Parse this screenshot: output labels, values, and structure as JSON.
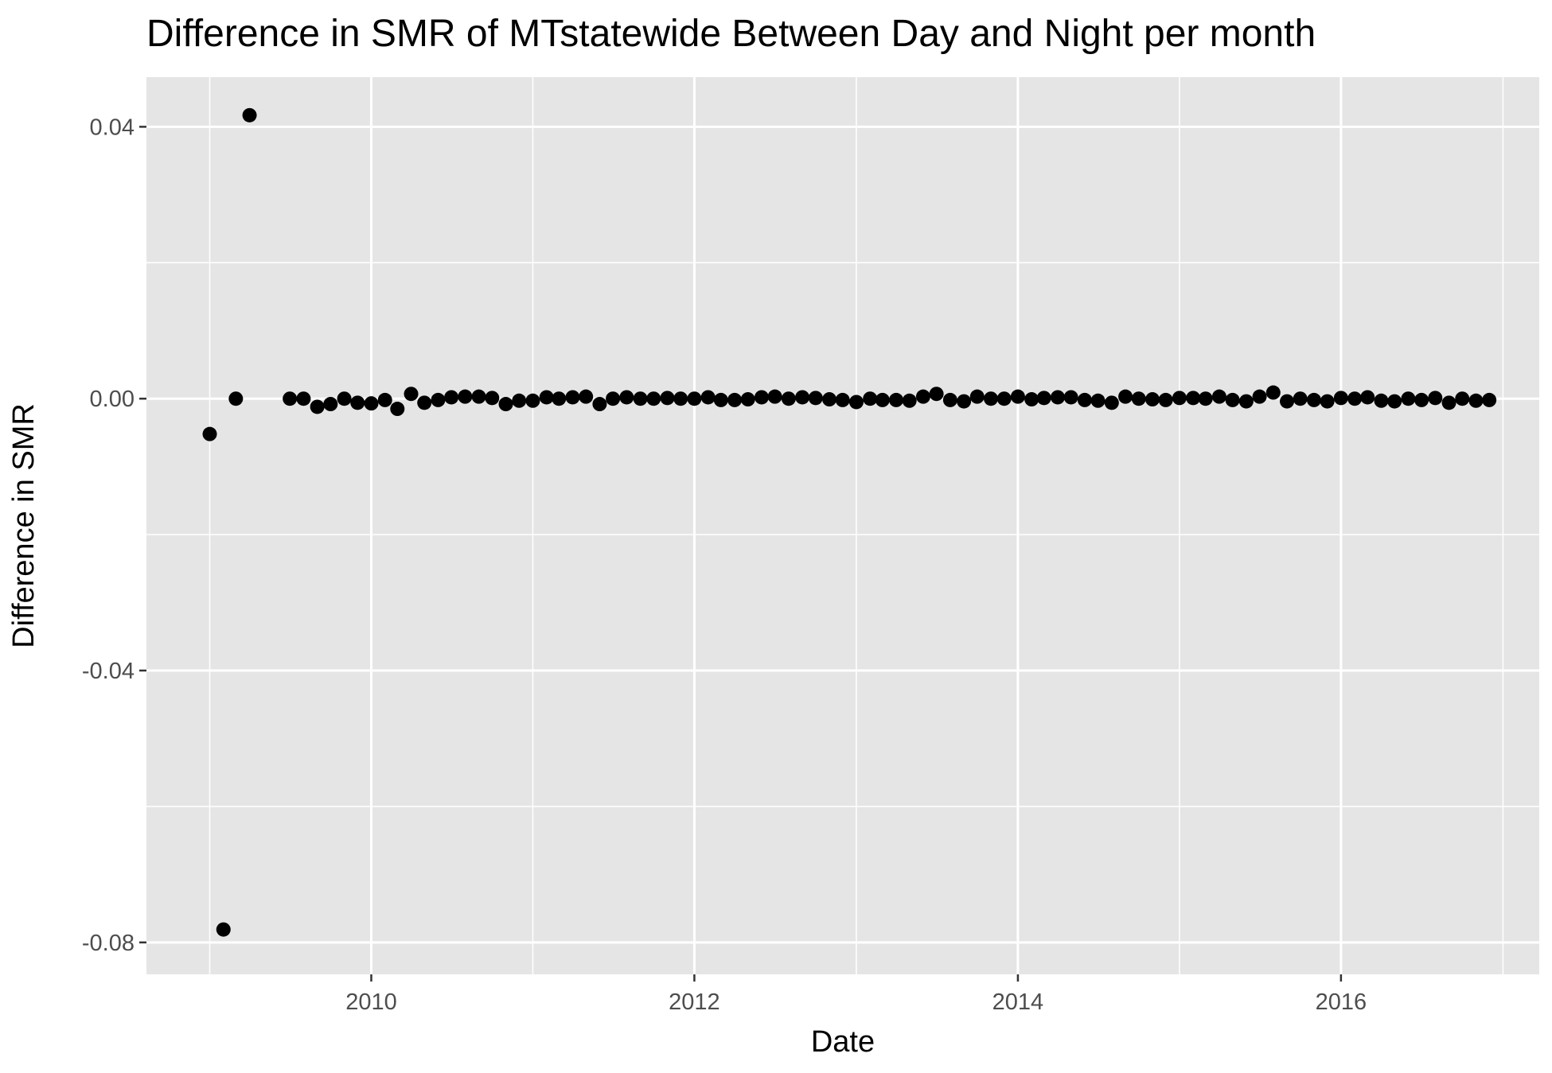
{
  "chart_data": {
    "type": "scatter",
    "title": "Difference in SMR of MTstatewide Between Day and Night per month",
    "xlabel": "Date",
    "ylabel": "Difference in SMR",
    "x_tick_labels": [
      "2010",
      "2012",
      "2014",
      "2016"
    ],
    "y_tick_labels": [
      "0.04",
      "0.00",
      "-0.04",
      "-0.08"
    ],
    "y_ticks": [
      0.04,
      0.0,
      -0.04,
      -0.08
    ],
    "x_ticks": [
      "2010-01-01",
      "2012-01-01",
      "2014-01-01",
      "2016-01-01"
    ],
    "xlim": [
      "2008-08-11",
      "2017-03-24"
    ],
    "ylim": [
      -0.0847,
      0.0473
    ],
    "grid": true,
    "legend": "none",
    "colors": {
      "panel_background": "#e5e5e5",
      "grid_line": "#ffffff",
      "point": "#000000",
      "tick_mark": "#333333",
      "tick_text": "#4d4d4d"
    },
    "series": [
      {
        "points": [
          {
            "x": "2009-01-01",
            "y": -0.0052
          },
          {
            "x": "2009-02-01",
            "y": -0.0781
          },
          {
            "x": "2009-03-01",
            "y": 0.0
          },
          {
            "x": "2009-04-01",
            "y": 0.0417
          },
          {
            "x": "2009-07-01",
            "y": 0.0
          },
          {
            "x": "2009-08-01",
            "y": 0.0
          },
          {
            "x": "2009-09-01",
            "y": -0.0012
          },
          {
            "x": "2009-10-01",
            "y": -0.0008
          },
          {
            "x": "2009-11-01",
            "y": 0.0
          },
          {
            "x": "2009-12-01",
            "y": -0.0006
          },
          {
            "x": "2010-01-01",
            "y": -0.0007
          },
          {
            "x": "2010-02-01",
            "y": -0.0002
          },
          {
            "x": "2010-03-01",
            "y": -0.0015
          },
          {
            "x": "2010-04-01",
            "y": 0.0007
          },
          {
            "x": "2010-05-01",
            "y": -0.0006
          },
          {
            "x": "2010-06-01",
            "y": -0.0002
          },
          {
            "x": "2010-07-01",
            "y": 0.0002
          },
          {
            "x": "2010-08-01",
            "y": 0.0003
          },
          {
            "x": "2010-09-01",
            "y": 0.0003
          },
          {
            "x": "2010-10-01",
            "y": 0.0001
          },
          {
            "x": "2010-11-01",
            "y": -0.0008
          },
          {
            "x": "2010-12-01",
            "y": -0.0003
          },
          {
            "x": "2011-01-01",
            "y": -0.0003
          },
          {
            "x": "2011-02-01",
            "y": 0.0002
          },
          {
            "x": "2011-03-01",
            "y": 0.0
          },
          {
            "x": "2011-04-01",
            "y": 0.0002
          },
          {
            "x": "2011-05-01",
            "y": 0.0003
          },
          {
            "x": "2011-06-01",
            "y": -0.0008
          },
          {
            "x": "2011-07-01",
            "y": 0.0
          },
          {
            "x": "2011-08-01",
            "y": 0.0002
          },
          {
            "x": "2011-09-01",
            "y": 0.0
          },
          {
            "x": "2011-10-01",
            "y": 0.0
          },
          {
            "x": "2011-11-01",
            "y": 0.0001
          },
          {
            "x": "2011-12-01",
            "y": 0.0
          },
          {
            "x": "2012-01-01",
            "y": 0.0
          },
          {
            "x": "2012-02-01",
            "y": 0.0002
          },
          {
            "x": "2012-03-01",
            "y": -0.0002
          },
          {
            "x": "2012-04-01",
            "y": -0.0002
          },
          {
            "x": "2012-05-01",
            "y": -0.0001
          },
          {
            "x": "2012-06-01",
            "y": 0.0002
          },
          {
            "x": "2012-07-01",
            "y": 0.0003
          },
          {
            "x": "2012-08-01",
            "y": 0.0
          },
          {
            "x": "2012-09-01",
            "y": 0.0002
          },
          {
            "x": "2012-10-01",
            "y": 0.0001
          },
          {
            "x": "2012-11-01",
            "y": -0.0001
          },
          {
            "x": "2012-12-01",
            "y": -0.0002
          },
          {
            "x": "2013-01-01",
            "y": -0.0005
          },
          {
            "x": "2013-02-01",
            "y": 0.0
          },
          {
            "x": "2013-03-01",
            "y": -0.0002
          },
          {
            "x": "2013-04-01",
            "y": -0.0002
          },
          {
            "x": "2013-05-01",
            "y": -0.0003
          },
          {
            "x": "2013-06-01",
            "y": 0.0003
          },
          {
            "x": "2013-07-01",
            "y": 0.0007
          },
          {
            "x": "2013-08-01",
            "y": -0.0002
          },
          {
            "x": "2013-09-01",
            "y": -0.0004
          },
          {
            "x": "2013-10-01",
            "y": 0.0003
          },
          {
            "x": "2013-11-01",
            "y": 0.0
          },
          {
            "x": "2013-12-01",
            "y": 0.0
          },
          {
            "x": "2014-01-01",
            "y": 0.0003
          },
          {
            "x": "2014-02-01",
            "y": -0.0001
          },
          {
            "x": "2014-03-01",
            "y": 0.0001
          },
          {
            "x": "2014-04-01",
            "y": 0.0002
          },
          {
            "x": "2014-05-01",
            "y": 0.0002
          },
          {
            "x": "2014-06-01",
            "y": -0.0002
          },
          {
            "x": "2014-07-01",
            "y": -0.0003
          },
          {
            "x": "2014-08-01",
            "y": -0.0006
          },
          {
            "x": "2014-09-01",
            "y": 0.0003
          },
          {
            "x": "2014-10-01",
            "y": 0.0
          },
          {
            "x": "2014-11-01",
            "y": -0.0001
          },
          {
            "x": "2014-12-01",
            "y": -0.0002
          },
          {
            "x": "2015-01-01",
            "y": 0.0001
          },
          {
            "x": "2015-02-01",
            "y": 0.0001
          },
          {
            "x": "2015-03-01",
            "y": 0.0
          },
          {
            "x": "2015-04-01",
            "y": 0.0003
          },
          {
            "x": "2015-05-01",
            "y": -0.0002
          },
          {
            "x": "2015-06-01",
            "y": -0.0004
          },
          {
            "x": "2015-07-01",
            "y": 0.0003
          },
          {
            "x": "2015-08-01",
            "y": 0.0009
          },
          {
            "x": "2015-09-01",
            "y": -0.0004
          },
          {
            "x": "2015-10-01",
            "y": 0.0
          },
          {
            "x": "2015-11-01",
            "y": -0.0002
          },
          {
            "x": "2015-12-01",
            "y": -0.0004
          },
          {
            "x": "2016-01-01",
            "y": 0.0001
          },
          {
            "x": "2016-02-01",
            "y": 0.0
          },
          {
            "x": "2016-03-01",
            "y": 0.0002
          },
          {
            "x": "2016-04-01",
            "y": -0.0003
          },
          {
            "x": "2016-05-01",
            "y": -0.0004
          },
          {
            "x": "2016-06-01",
            "y": 0.0
          },
          {
            "x": "2016-07-01",
            "y": -0.0002
          },
          {
            "x": "2016-08-01",
            "y": 0.0001
          },
          {
            "x": "2016-09-01",
            "y": -0.0006
          },
          {
            "x": "2016-10-01",
            "y": 0.0
          },
          {
            "x": "2016-11-01",
            "y": -0.0003
          },
          {
            "x": "2016-12-01",
            "y": -0.0002
          }
        ]
      }
    ]
  }
}
